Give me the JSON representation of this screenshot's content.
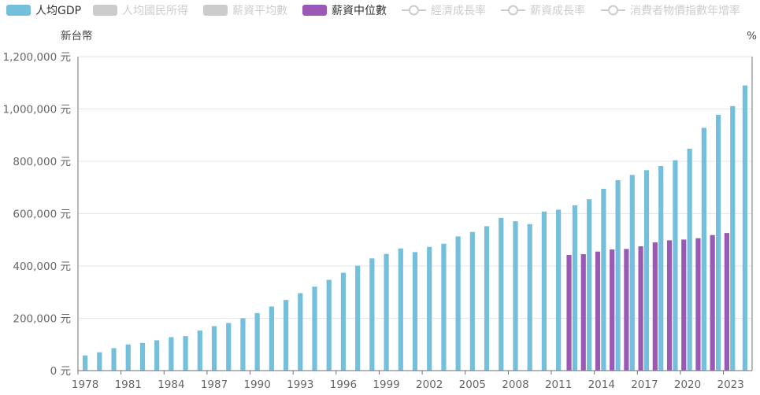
{
  "chart_data": {
    "type": "bar",
    "legend": [
      {
        "name": "人均GDP",
        "color": "#73bfdc",
        "marker": "rect",
        "active": true
      },
      {
        "name": "人均國民所得",
        "color": "#cccccc",
        "marker": "rect",
        "active": false
      },
      {
        "name": "薪資平均數",
        "color": "#cccccc",
        "marker": "rect",
        "active": false
      },
      {
        "name": "薪資中位數",
        "color": "#9b59b6",
        "marker": "rect",
        "active": true
      },
      {
        "name": "經濟成長率",
        "color": "#cccccc",
        "marker": "line",
        "active": false
      },
      {
        "name": "薪資成長率",
        "color": "#cccccc",
        "marker": "line",
        "active": false
      },
      {
        "name": "消費者物價指數年增率",
        "color": "#cccccc",
        "marker": "line",
        "active": false
      }
    ],
    "y_left_unit": "新台幣",
    "y_right_unit": "%",
    "ylim": [
      0,
      1200000
    ],
    "y_ticks": [
      0,
      200000,
      400000,
      600000,
      800000,
      1000000,
      1200000
    ],
    "y_tick_labels": [
      "0 元",
      "200,000 元",
      "400,000 元",
      "600,000 元",
      "800,000 元",
      "1,000,000 元",
      "1,200,000 元"
    ],
    "x_tick_labels": [
      "1978",
      "1981",
      "1984",
      "1987",
      "1990",
      "1993",
      "1996",
      "1999",
      "2002",
      "2005",
      "2008",
      "2011",
      "2014",
      "2017",
      "2020",
      "2023"
    ],
    "categories": [
      "1978",
      "1979",
      "1980",
      "1981",
      "1982",
      "1983",
      "1984",
      "1985",
      "1986",
      "1987",
      "1988",
      "1989",
      "1990",
      "1991",
      "1992",
      "1993",
      "1994",
      "1995",
      "1996",
      "1997",
      "1998",
      "1999",
      "2000",
      "2001",
      "2002",
      "2003",
      "2004",
      "2005",
      "2006",
      "2007",
      "2008",
      "2009",
      "2010",
      "2011",
      "2012",
      "2013",
      "2014",
      "2015",
      "2016",
      "2017",
      "2018",
      "2019",
      "2020",
      "2021",
      "2022",
      "2023",
      "2024"
    ],
    "series": [
      {
        "name": "人均GDP",
        "color": "#73bfdc",
        "values": [
          58000,
          70000,
          86000,
          100000,
          106000,
          116000,
          128000,
          132000,
          153000,
          170000,
          182000,
          200000,
          220000,
          245000,
          270000,
          296000,
          321000,
          347000,
          374000,
          401000,
          429000,
          446000,
          467000,
          453000,
          473000,
          485000,
          513000,
          530000,
          552000,
          584000,
          571000,
          560000,
          608000,
          615000,
          632000,
          655000,
          695000,
          728000,
          748000,
          766000,
          782000,
          804000,
          848000,
          928000,
          978000,
          1011000,
          1090000
        ]
      },
      {
        "name": "薪資中位數",
        "color": "#9b59b6",
        "values": [
          null,
          null,
          null,
          null,
          null,
          null,
          null,
          null,
          null,
          null,
          null,
          null,
          null,
          null,
          null,
          null,
          null,
          null,
          null,
          null,
          null,
          null,
          null,
          null,
          null,
          null,
          null,
          null,
          null,
          null,
          null,
          null,
          null,
          null,
          442000,
          445000,
          455000,
          463000,
          465000,
          475000,
          490000,
          498000,
          501000,
          506000,
          518000,
          526000,
          null
        ]
      }
    ]
  }
}
